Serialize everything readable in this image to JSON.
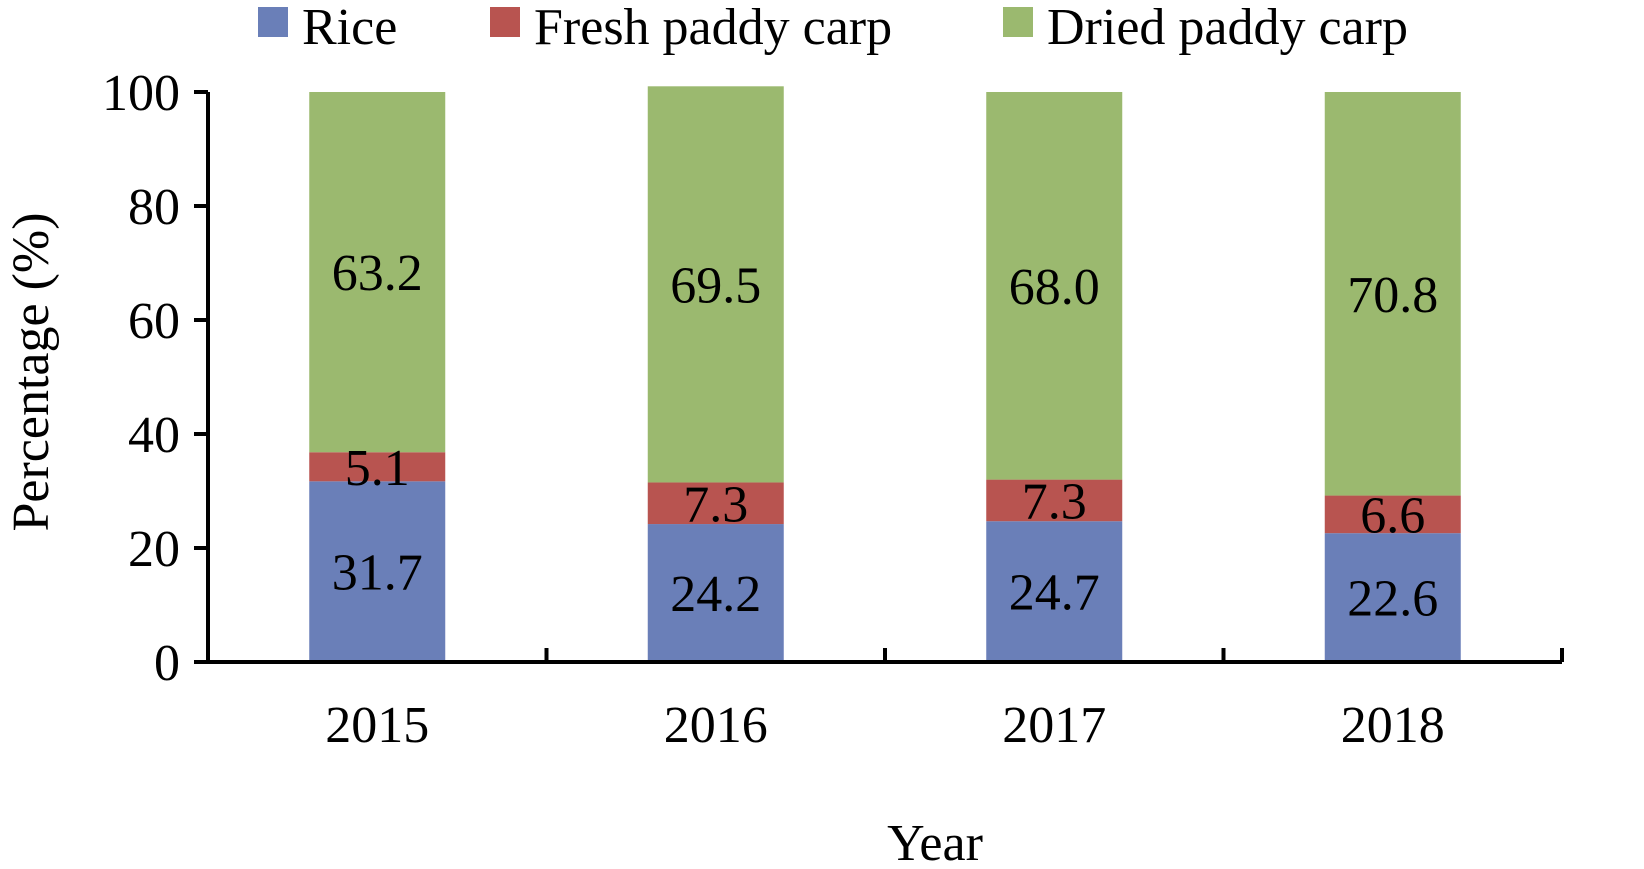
{
  "chart_data": {
    "type": "bar",
    "stacked": true,
    "categories": [
      "2015",
      "2016",
      "2017",
      "2018"
    ],
    "series": [
      {
        "name": "Rice",
        "color": "#6a7fb8",
        "values": [
          31.7,
          24.2,
          24.7,
          22.6
        ],
        "labels": [
          "31.7",
          "24.2",
          "24.7",
          "22.6"
        ]
      },
      {
        "name": "Fresh paddy carp",
        "color": "#b85450",
        "values": [
          5.1,
          7.3,
          7.3,
          6.6
        ],
        "labels": [
          "5.1",
          "7.3",
          "7.3",
          "6.6"
        ]
      },
      {
        "name": "Dried paddy carp",
        "color": "#9bb96f",
        "values": [
          63.2,
          69.5,
          68.0,
          70.8
        ],
        "labels": [
          "63.2",
          "69.5",
          "68.0",
          "70.8"
        ]
      }
    ],
    "xlabel": "Year",
    "ylabel": "Percentage (%)",
    "ylim": [
      0,
      100
    ],
    "yticks": [
      0,
      20,
      40,
      60,
      80,
      100
    ],
    "grid": false,
    "legend_position": "top"
  }
}
